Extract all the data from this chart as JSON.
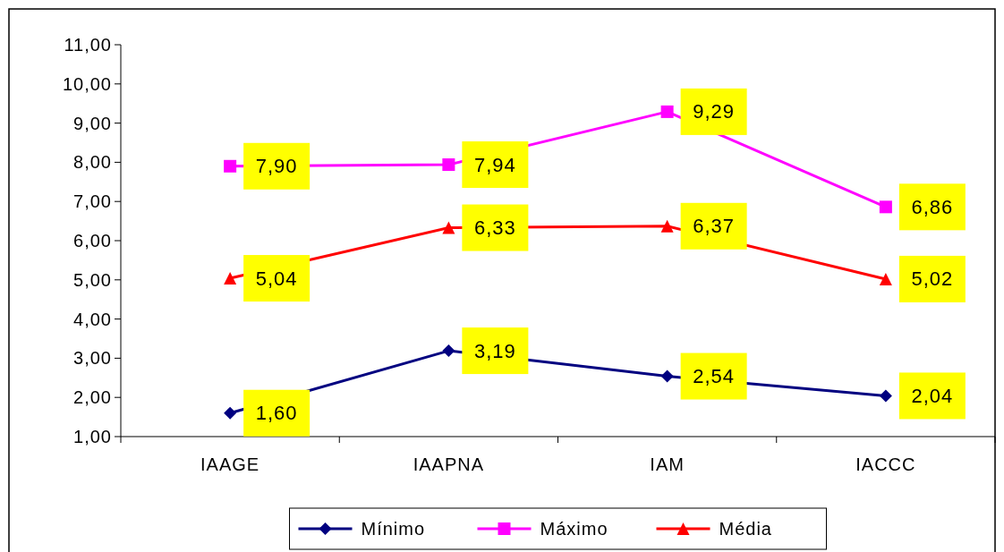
{
  "chart_data": {
    "type": "line",
    "categories": [
      "IAAGE",
      "IAAPNA",
      "IAM",
      "IACCC"
    ],
    "series": [
      {
        "name": "Mínimo",
        "color": "#000080",
        "marker": "diamond",
        "values": [
          1.6,
          3.19,
          2.54,
          2.04
        ],
        "value_labels": [
          "1,60",
          "3,19",
          "2,54",
          "2,04"
        ]
      },
      {
        "name": "Máximo",
        "color": "#ff00ff",
        "marker": "square",
        "values": [
          7.9,
          7.94,
          9.29,
          6.86
        ],
        "value_labels": [
          "7,90",
          "7,94",
          "9,29",
          "6,86"
        ]
      },
      {
        "name": "Média",
        "color": "#ff0000",
        "marker": "triangle",
        "values": [
          5.04,
          6.33,
          6.37,
          5.02
        ],
        "value_labels": [
          "5,04",
          "6,33",
          "6,37",
          "5,02"
        ]
      }
    ],
    "ylim": [
      1,
      11
    ],
    "yticks": [
      {
        "value": 1,
        "label": "1,00"
      },
      {
        "value": 2,
        "label": "2,00"
      },
      {
        "value": 3,
        "label": "3,00"
      },
      {
        "value": 4,
        "label": "4,00"
      },
      {
        "value": 5,
        "label": "5,00"
      },
      {
        "value": 6,
        "label": "6,00"
      },
      {
        "value": 7,
        "label": "7,00"
      },
      {
        "value": 8,
        "label": "8,00"
      },
      {
        "value": 9,
        "label": "9,00"
      },
      {
        "value": 10,
        "label": "10,00"
      },
      {
        "value": 11,
        "label": "11,00"
      }
    ],
    "grid": false,
    "legend": "bottom"
  }
}
